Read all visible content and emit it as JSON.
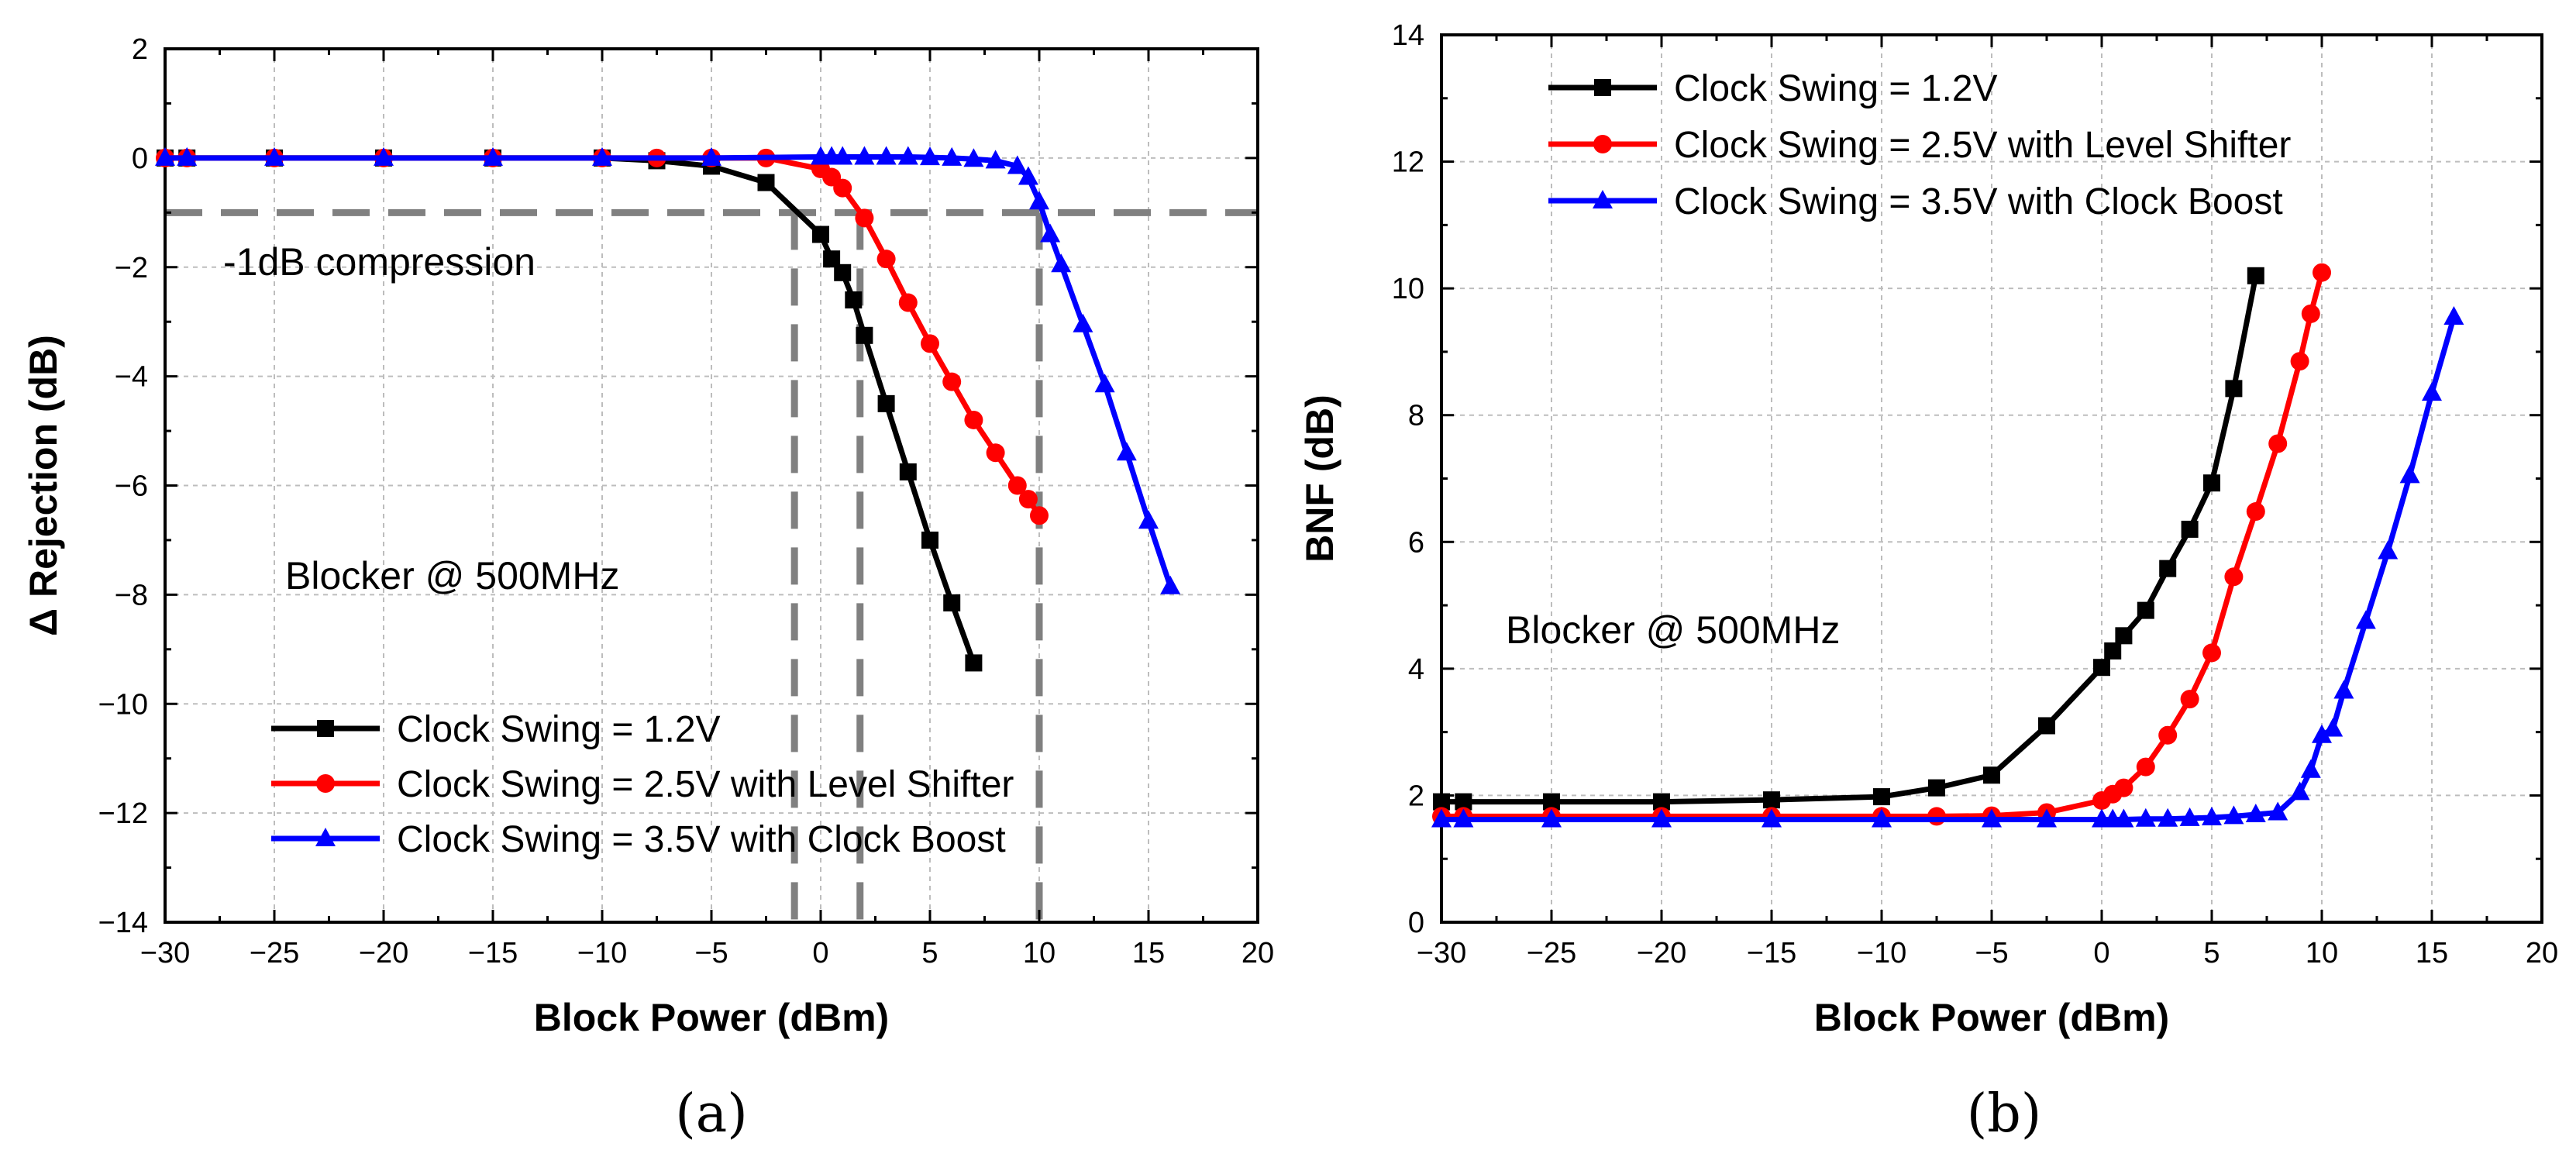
{
  "chart_data": [
    {
      "type": "line",
      "panel_label": "(a)",
      "xlabel": "Block Power (dBm)",
      "ylabel": "Δ Rejection (dB)",
      "xlim": [
        -30,
        20
      ],
      "ylim": [
        -14,
        2
      ],
      "xticks": [
        -30,
        -25,
        -20,
        -15,
        -10,
        -5,
        0,
        5,
        10,
        15,
        20
      ],
      "yticks": [
        -14,
        -12,
        -10,
        -8,
        -6,
        -4,
        -2,
        0,
        2
      ],
      "xtick_labels": [
        "−30",
        "−25",
        "−20",
        "−15",
        "−10",
        "−5",
        "0",
        "5",
        "10",
        "15",
        "20"
      ],
      "ytick_labels": [
        "−14",
        "−12",
        "−10",
        "−8",
        "−6",
        "−4",
        "−2",
        "0",
        "2"
      ],
      "grid": true,
      "legend_position": "bottom-left",
      "annotations": [
        "-1dB compression",
        "Blocker @ 500MHz"
      ],
      "reference_lines": {
        "horizontal_y": -1,
        "vertical_x": [
          -1.2,
          1.8,
          10
        ]
      },
      "series": [
        {
          "name": "Clock Swing = 1.2V",
          "color": "#000000",
          "marker": "square",
          "x": [
            -30,
            -29,
            -25,
            -20,
            -15,
            -10,
            -7.5,
            -5,
            -2.5,
            0,
            0.5,
            1,
            1.5,
            2,
            3,
            4,
            5,
            6,
            7
          ],
          "y": [
            0,
            0,
            0,
            0,
            0,
            0,
            -0.05,
            -0.15,
            -0.45,
            -1.4,
            -1.85,
            -2.1,
            -2.6,
            -3.25,
            -4.5,
            -5.75,
            -7.0,
            -8.15,
            -9.25
          ]
        },
        {
          "name": "Clock Swing = 2.5V with Level Shifter",
          "color": "#ff0000",
          "marker": "circle",
          "x": [
            -30,
            -29,
            -25,
            -20,
            -15,
            -10,
            -7.5,
            -5,
            -2.5,
            0,
            0.5,
            1,
            2,
            3,
            4,
            5,
            6,
            7,
            8,
            9,
            9.5,
            10
          ],
          "y": [
            0,
            0,
            0,
            0,
            0,
            0,
            0,
            0,
            0,
            -0.2,
            -0.35,
            -0.55,
            -1.1,
            -1.85,
            -2.65,
            -3.4,
            -4.1,
            -4.8,
            -5.4,
            -6.0,
            -6.25,
            -6.55
          ]
        },
        {
          "name": "Clock Swing = 3.5V with Clock Boost",
          "color": "#0000ff",
          "marker": "triangle",
          "x": [
            -30,
            -29,
            -25,
            -20,
            -15,
            -10,
            -5,
            0,
            0.5,
            1,
            2,
            3,
            4,
            5,
            6,
            7,
            8,
            9,
            9.5,
            10,
            10.5,
            11,
            12,
            13,
            14,
            15,
            16
          ],
          "y": [
            0,
            0,
            0,
            0,
            0,
            0,
            0,
            0.02,
            0.02,
            0.02,
            0.02,
            0.02,
            0.02,
            0.01,
            0,
            -0.02,
            -0.05,
            -0.15,
            -0.35,
            -0.8,
            -1.4,
            -1.95,
            -3.05,
            -4.15,
            -5.4,
            -6.65,
            -7.85
          ]
        }
      ]
    },
    {
      "type": "line",
      "panel_label": "(b)",
      "xlabel": "Block Power (dBm)",
      "ylabel": "BNF (dB)",
      "xlim": [
        -30,
        20
      ],
      "ylim": [
        0,
        14
      ],
      "xticks": [
        -30,
        -25,
        -20,
        -15,
        -10,
        -5,
        0,
        5,
        10,
        15,
        20
      ],
      "yticks": [
        0,
        2,
        4,
        6,
        8,
        10,
        12,
        14
      ],
      "xtick_labels": [
        "−30",
        "−25",
        "−20",
        "−15",
        "−10",
        "−5",
        "0",
        "5",
        "10",
        "15",
        "20"
      ],
      "ytick_labels": [
        "0",
        "2",
        "4",
        "6",
        "8",
        "10",
        "12",
        "14"
      ],
      "grid": true,
      "legend_position": "top-left",
      "annotations": [
        "Blocker @ 500MHz"
      ],
      "series": [
        {
          "name": "Clock Swing = 1.2V",
          "color": "#000000",
          "marker": "square",
          "x": [
            -30,
            -29,
            -25,
            -20,
            -15,
            -10,
            -7.5,
            -5,
            -2.5,
            0,
            0.5,
            1,
            2,
            3,
            4,
            5,
            6,
            7
          ],
          "y": [
            1.9,
            1.9,
            1.9,
            1.9,
            1.93,
            1.98,
            2.12,
            2.32,
            3.1,
            4.02,
            4.28,
            4.52,
            4.92,
            5.58,
            6.2,
            6.93,
            8.42,
            10.2
          ]
        },
        {
          "name": "Clock Swing = 2.5V with Level Shifter",
          "color": "#ff0000",
          "marker": "circle",
          "x": [
            -30,
            -29,
            -25,
            -20,
            -15,
            -10,
            -7.5,
            -5,
            -2.5,
            0,
            0.5,
            1,
            2,
            3,
            4,
            5,
            6,
            7,
            8,
            9,
            9.5,
            10
          ],
          "y": [
            1.67,
            1.67,
            1.67,
            1.67,
            1.67,
            1.67,
            1.67,
            1.68,
            1.73,
            1.92,
            2.02,
            2.12,
            2.45,
            2.95,
            3.52,
            4.25,
            5.45,
            6.48,
            7.55,
            8.85,
            9.6,
            10.25
          ]
        },
        {
          "name": "Clock Swing = 3.5V with Clock Boost",
          "color": "#0000ff",
          "marker": "triangle",
          "x": [
            -30,
            -29,
            -25,
            -20,
            -15,
            -10,
            -5,
            -2.5,
            0,
            0.5,
            1,
            2,
            3,
            4,
            5,
            6,
            7,
            8,
            9,
            9.5,
            10,
            10.5,
            11,
            12,
            13,
            14,
            15,
            16
          ],
          "y": [
            1.62,
            1.62,
            1.62,
            1.62,
            1.62,
            1.62,
            1.62,
            1.62,
            1.62,
            1.62,
            1.62,
            1.63,
            1.63,
            1.64,
            1.65,
            1.67,
            1.7,
            1.73,
            2.05,
            2.4,
            2.95,
            3.05,
            3.65,
            4.75,
            5.85,
            7.05,
            8.35,
            9.55
          ]
        }
      ]
    }
  ]
}
